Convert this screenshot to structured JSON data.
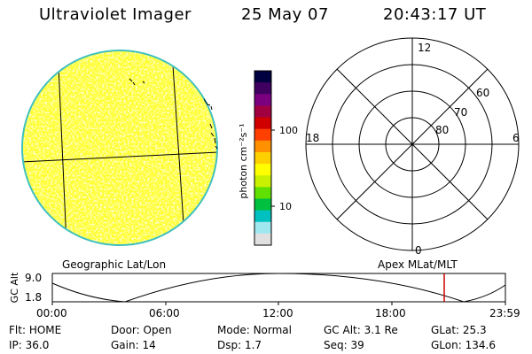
{
  "header": {
    "title": "Ultraviolet Imager",
    "date": "25 May 07",
    "time": "20:43:17 UT"
  },
  "colorbar": {
    "unit_label": "photon cm⁻²s⁻¹",
    "ticks": [
      "100",
      "10"
    ],
    "colors": [
      "#000040",
      "#400060",
      "#7a0080",
      "#a00040",
      "#d00000",
      "#ff4000",
      "#ff9000",
      "#ffd000",
      "#ffff00",
      "#c8f000",
      "#60e000",
      "#00c040",
      "#00c0c0",
      "#a0e8f0",
      "#e0e0e0"
    ]
  },
  "left_map": {
    "label": "Geographic Lat/Lon",
    "fill_color": "#ffff33",
    "edge_color": "#40c0c0"
  },
  "polar_plot": {
    "label": "Apex MLat/MLT",
    "ring_labels": [
      "60",
      "70",
      "80"
    ],
    "mlt_labels": {
      "top": "12",
      "left": "18",
      "right": "6",
      "bottom": "0"
    }
  },
  "alt_plot": {
    "axis_title": "GC Alt",
    "y_max_label": "9.0",
    "y_min_label": "1.8",
    "x_ticks": [
      "00:00",
      "06:00",
      "12:00",
      "18:00",
      "23:59"
    ],
    "marker_color": "#cc0000"
  },
  "footer": {
    "rows": [
      [
        {
          "key": "Flt:",
          "value": "HOME"
        },
        {
          "key": "Door:",
          "value": "Open"
        },
        {
          "key": "Mode:",
          "value": "Normal"
        },
        {
          "key": "GC Alt:",
          "value": "3.1 Re"
        },
        {
          "key": "GLat:",
          "value": "25.3"
        }
      ],
      [
        {
          "key": "IP:",
          "value": "36.0"
        },
        {
          "key": "Gain:",
          "value": "14"
        },
        {
          "key": "Dsp:",
          "value": "1.7"
        },
        {
          "key": "Seq:",
          "value": "39"
        },
        {
          "key": "GLon:",
          "value": "134.6"
        }
      ]
    ]
  }
}
